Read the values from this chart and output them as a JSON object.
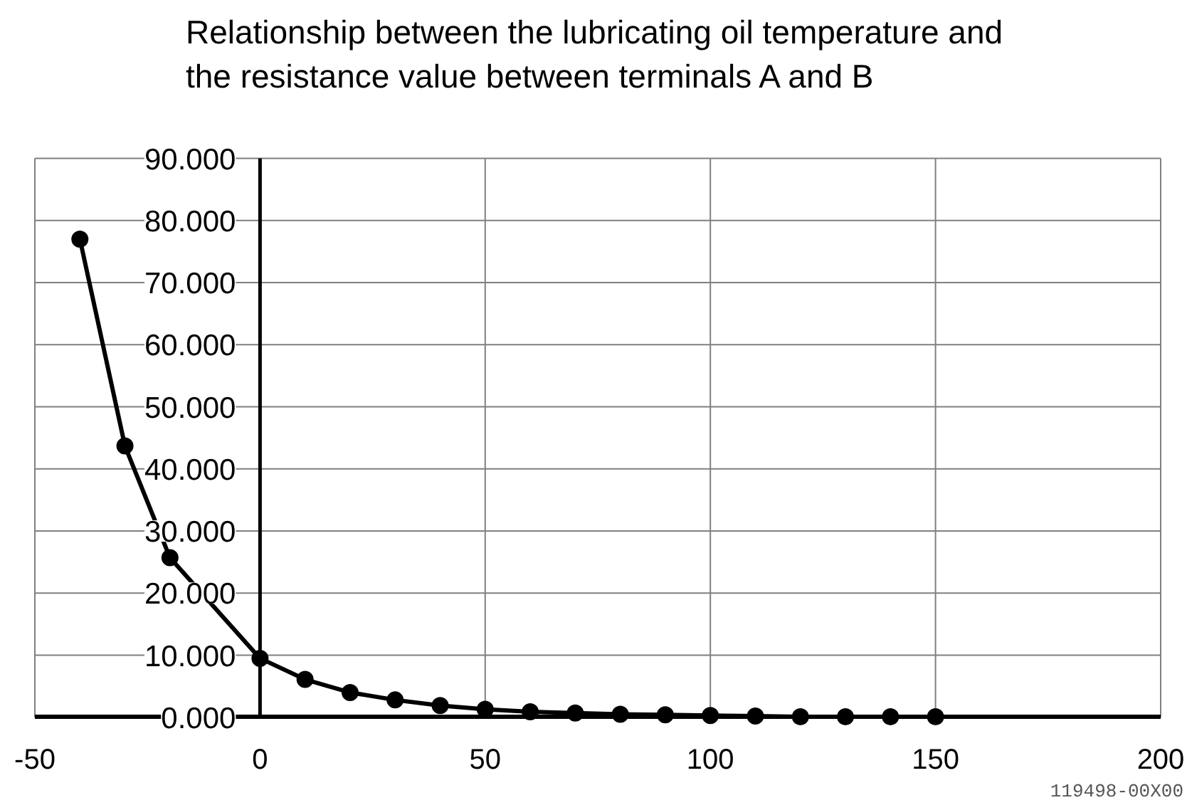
{
  "chart_data": {
    "type": "line",
    "title": "Relationship between the lubricating oil temperature and the resistance value between terminals A and B",
    "x": [
      -40,
      -30,
      -20,
      0,
      10,
      20,
      30,
      40,
      50,
      60,
      70,
      80,
      90,
      100,
      110,
      120,
      130,
      140,
      150
    ],
    "series": [
      {
        "color": "#000000",
        "values": [
          77.0,
          43.7,
          25.7,
          9.5,
          6.1,
          4.0,
          2.8,
          1.9,
          1.3,
          0.9,
          0.7,
          0.5,
          0.4,
          0.3,
          0.2,
          0.1,
          0.1,
          0.1,
          0.1
        ]
      }
    ],
    "xlim": [
      -50,
      200
    ],
    "xticks": [
      -50,
      0,
      50,
      100,
      150,
      200
    ],
    "ylim": [
      0,
      90
    ],
    "yticks": [
      {
        "value": 0,
        "label": "0.000"
      },
      {
        "value": 10,
        "label": "10.000"
      },
      {
        "value": 20,
        "label": "20.000"
      },
      {
        "value": 30,
        "label": "30.000"
      },
      {
        "value": 40,
        "label": "40.000"
      },
      {
        "value": 50,
        "label": "50.000"
      },
      {
        "value": 60,
        "label": "60.000"
      },
      {
        "value": 70,
        "label": "70.000"
      },
      {
        "value": 80,
        "label": "80.000"
      },
      {
        "value": 90,
        "label": "90.000"
      }
    ],
    "grid": true,
    "marker": "circle",
    "line_style": "solid",
    "annotations": [
      "119498-00X00"
    ]
  }
}
